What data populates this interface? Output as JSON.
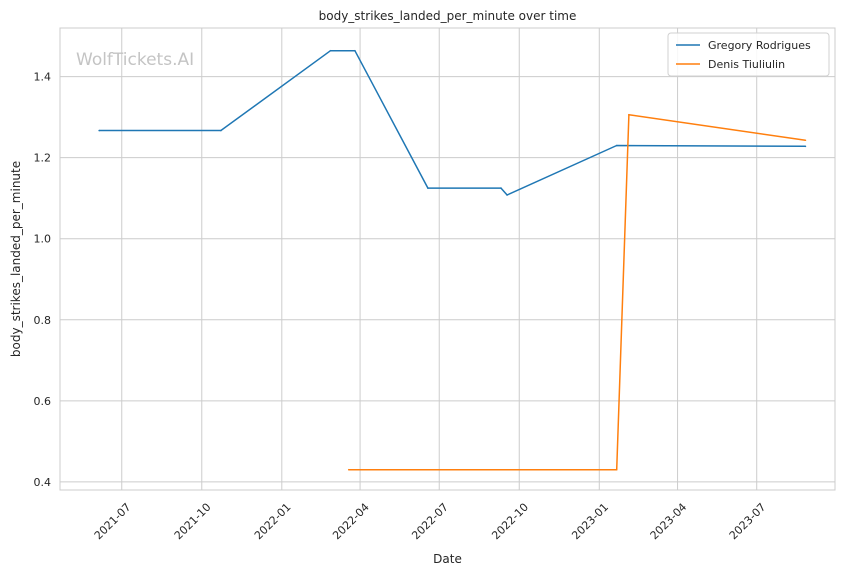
{
  "chart_data": {
    "type": "line",
    "title": "body_strikes_landed_per_minute over time",
    "xlabel": "Date",
    "ylabel": "body_strikes_landed_per_minute",
    "watermark": "WolfTickets.AI",
    "x_ticks": [
      "2021-07-01",
      "2021-10-01",
      "2022-01-01",
      "2022-04-01",
      "2022-07-01",
      "2022-10-01",
      "2023-01-01",
      "2023-04-01",
      "2023-07-01"
    ],
    "x_tick_labels": [
      "2021-07",
      "2021-10",
      "2022-01",
      "2022-04",
      "2022-07",
      "2022-10",
      "2023-01",
      "2023-04",
      "2023-07"
    ],
    "xlim": [
      "2021-04-21",
      "2023-09-29"
    ],
    "y_ticks": [
      0.4,
      0.6,
      0.8,
      1.0,
      1.2,
      1.4
    ],
    "y_tick_labels": [
      "0.4",
      "0.6",
      "0.8",
      "1.0",
      "1.2",
      "1.4"
    ],
    "ylim": [
      0.38,
      1.52
    ],
    "grid": true,
    "legend_position": "top-right",
    "series": [
      {
        "name": "Gregory Rodrigues",
        "color": "#1f77b4",
        "points": [
          {
            "x": "2021-06-05",
            "y": 1.267
          },
          {
            "x": "2021-10-23",
            "y": 1.267
          },
          {
            "x": "2022-02-26",
            "y": 1.464
          },
          {
            "x": "2022-03-26",
            "y": 1.464
          },
          {
            "x": "2022-06-18",
            "y": 1.125
          },
          {
            "x": "2022-09-10",
            "y": 1.125
          },
          {
            "x": "2022-09-17",
            "y": 1.108
          },
          {
            "x": "2023-01-21",
            "y": 1.23
          },
          {
            "x": "2023-08-26",
            "y": 1.228
          }
        ]
      },
      {
        "name": "Denis Tiuliulin",
        "color": "#ff7f0e",
        "points": [
          {
            "x": "2022-03-19",
            "y": 0.43
          },
          {
            "x": "2023-01-21",
            "y": 0.43
          },
          {
            "x": "2023-02-04",
            "y": 1.306
          },
          {
            "x": "2023-08-26",
            "y": 1.243
          }
        ]
      }
    ]
  }
}
